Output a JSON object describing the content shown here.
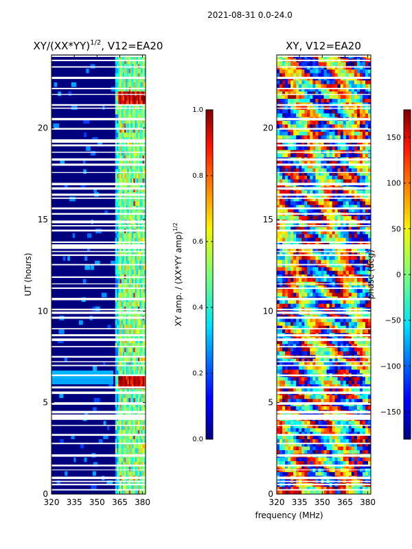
{
  "header": {
    "title": "2021-08-31 0.0-24.0"
  },
  "xaxis_label": "frequency (MHz)",
  "chart_data": [
    {
      "type": "heatmap",
      "title_prefix": "XY/(XX*YY)",
      "title_sup": "1/2",
      "title_suffix": ", V12=EA20",
      "xlabel": "",
      "ylabel": "UT (hours)",
      "xlim": [
        320,
        382
      ],
      "ylim": [
        0,
        24
      ],
      "xticks": [
        320,
        335,
        350,
        365,
        380
      ],
      "yticks": [
        0,
        5,
        10,
        15,
        20
      ],
      "colorbar": {
        "label_main": "XY amp. / (XX*YY amp)",
        "label_sup": "1/2",
        "range": [
          0.0,
          1.0
        ],
        "ticks": [
          "0.0",
          "0.2",
          "0.4",
          "0.6",
          "0.8",
          "1.0"
        ],
        "colormap": "jet"
      },
      "bright_channels_mhz": [
        365,
        368,
        371,
        374,
        377,
        380
      ],
      "high_amplitude_ut_ranges": [
        [
          5.7,
          6.5
        ],
        [
          6.9,
          7.1
        ],
        [
          21.3,
          22.0
        ]
      ]
    },
    {
      "type": "heatmap",
      "title": "XY, V12=EA20",
      "xlabel": "frequency (MHz)",
      "ylabel": "",
      "xlim": [
        320,
        382
      ],
      "ylim": [
        0,
        24
      ],
      "xticks": [
        320,
        335,
        350,
        365,
        380
      ],
      "yticks": [
        0,
        5,
        10,
        15,
        20
      ],
      "colorbar": {
        "label": "phase (deg)",
        "range": [
          -180,
          180
        ],
        "ticks": [
          "−150",
          "−100",
          "−50",
          "0",
          "50",
          "100",
          "150"
        ],
        "colormap": "jet"
      }
    }
  ]
}
